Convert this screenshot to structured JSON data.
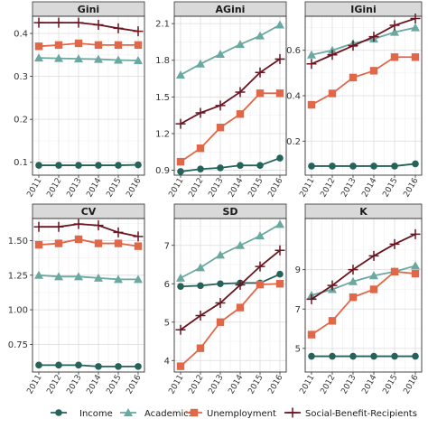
{
  "chart_data": {
    "type": "line",
    "x": [
      2011,
      2012,
      2013,
      2014,
      2015,
      2016
    ],
    "x_tick_labels": [
      "2011",
      "2012",
      "2013",
      "2014",
      "2015",
      "2016"
    ],
    "legend": {
      "placement": "bottom",
      "entries": [
        {
          "name": "Income",
          "color": "#25625a",
          "marker": "circle"
        },
        {
          "name": "Academics",
          "color": "#6aa8a0",
          "marker": "triangle"
        },
        {
          "name": "Unemployment",
          "color": "#e06848",
          "marker": "square"
        },
        {
          "name": "Social-Benefit-Recipients",
          "color": "#6b1420",
          "marker": "plus"
        }
      ]
    },
    "panels": [
      {
        "title": "Gini",
        "ylim": [
          0.07,
          0.44
        ],
        "yticks": [
          0.1,
          0.2,
          0.3,
          0.4
        ],
        "ytick_labels": [
          "0.1",
          "0.2",
          "0.3",
          "0.4"
        ],
        "series": [
          {
            "name": "Income",
            "values": [
              0.093,
              0.093,
              0.093,
              0.093,
              0.093,
              0.094
            ]
          },
          {
            "name": "Academics",
            "values": [
              0.343,
              0.342,
              0.341,
              0.34,
              0.338,
              0.337
            ]
          },
          {
            "name": "Unemployment",
            "values": [
              0.37,
              0.373,
              0.377,
              0.373,
              0.373,
              0.373
            ]
          },
          {
            "name": "Social-Benefit-Recipients",
            "values": [
              0.425,
              0.425,
              0.425,
              0.42,
              0.412,
              0.405
            ]
          }
        ]
      },
      {
        "title": "AGini",
        "ylim": [
          0.86,
          2.16
        ],
        "yticks": [
          0.9,
          1.2,
          1.5,
          1.8,
          2.1
        ],
        "ytick_labels": [
          "0.9",
          "1.2",
          "1.5",
          "1.8",
          "2.1"
        ],
        "series": [
          {
            "name": "Income",
            "values": [
              0.89,
              0.91,
              0.92,
              0.94,
              0.94,
              1.0
            ]
          },
          {
            "name": "Academics",
            "values": [
              1.68,
              1.77,
              1.85,
              1.93,
              2.0,
              2.09
            ]
          },
          {
            "name": "Unemployment",
            "values": [
              0.97,
              1.08,
              1.25,
              1.36,
              1.53,
              1.53
            ]
          },
          {
            "name": "Social-Benefit-Recipients",
            "values": [
              1.28,
              1.37,
              1.43,
              1.54,
              1.7,
              1.81
            ]
          }
        ]
      },
      {
        "title": "IGini",
        "ylim": [
          0.05,
          0.75
        ],
        "yticks": [
          0.2,
          0.4,
          0.6
        ],
        "ytick_labels": [
          "0.2",
          "0.4",
          "0.6"
        ],
        "series": [
          {
            "name": "Income",
            "values": [
              0.09,
              0.09,
              0.09,
              0.09,
              0.09,
              0.1
            ]
          },
          {
            "name": "Academics",
            "values": [
              0.58,
              0.6,
              0.63,
              0.65,
              0.68,
              0.7
            ]
          },
          {
            "name": "Unemployment",
            "values": [
              0.36,
              0.41,
              0.48,
              0.51,
              0.57,
              0.57
            ]
          },
          {
            "name": "Social-Benefit-Recipients",
            "values": [
              0.54,
              0.58,
              0.62,
              0.66,
              0.71,
              0.74
            ]
          }
        ]
      },
      {
        "title": "CV",
        "ylim": [
          0.55,
          1.66
        ],
        "yticks": [
          0.75,
          1.0,
          1.25,
          1.5
        ],
        "ytick_labels": [
          "0.75",
          "1.00",
          "1.25",
          "1.50"
        ],
        "series": [
          {
            "name": "Income",
            "values": [
              0.6,
              0.6,
              0.6,
              0.59,
              0.59,
              0.59
            ]
          },
          {
            "name": "Academics",
            "values": [
              1.25,
              1.24,
              1.24,
              1.23,
              1.22,
              1.22
            ]
          },
          {
            "name": "Unemployment",
            "values": [
              1.47,
              1.48,
              1.51,
              1.48,
              1.48,
              1.46
            ]
          },
          {
            "name": "Social-Benefit-Recipients",
            "values": [
              1.6,
              1.6,
              1.62,
              1.61,
              1.56,
              1.53
            ]
          }
        ]
      },
      {
        "title": "SD",
        "ylim": [
          3.7,
          7.7
        ],
        "yticks": [
          4,
          5,
          6,
          7
        ],
        "ytick_labels": [
          "4",
          "5",
          "6",
          "7"
        ],
        "series": [
          {
            "name": "Income",
            "values": [
              5.93,
              5.95,
              6.0,
              6.02,
              6.02,
              6.25
            ]
          },
          {
            "name": "Academics",
            "values": [
              6.15,
              6.42,
              6.75,
              7.0,
              7.25,
              7.55
            ]
          },
          {
            "name": "Unemployment",
            "values": [
              3.85,
              4.32,
              5.0,
              5.38,
              5.98,
              6.0
            ]
          },
          {
            "name": "Social-Benefit-Recipients",
            "values": [
              4.8,
              5.17,
              5.5,
              5.97,
              6.45,
              6.87
            ]
          }
        ]
      },
      {
        "title": "K",
        "ylim": [
          3.8,
          11.6
        ],
        "yticks": [
          5,
          7,
          9
        ],
        "ytick_labels": [
          "5",
          "7",
          "9"
        ],
        "series": [
          {
            "name": "Income",
            "values": [
              4.6,
              4.6,
              4.6,
              4.6,
              4.6,
              4.6
            ]
          },
          {
            "name": "Academics",
            "values": [
              7.7,
              8.0,
              8.4,
              8.7,
              8.9,
              9.2
            ]
          },
          {
            "name": "Unemployment",
            "values": [
              5.7,
              6.4,
              7.6,
              8.0,
              8.9,
              8.8
            ]
          },
          {
            "name": "Social-Benefit-Recipients",
            "values": [
              7.5,
              8.2,
              9.0,
              9.7,
              10.3,
              10.8
            ]
          }
        ]
      }
    ]
  }
}
